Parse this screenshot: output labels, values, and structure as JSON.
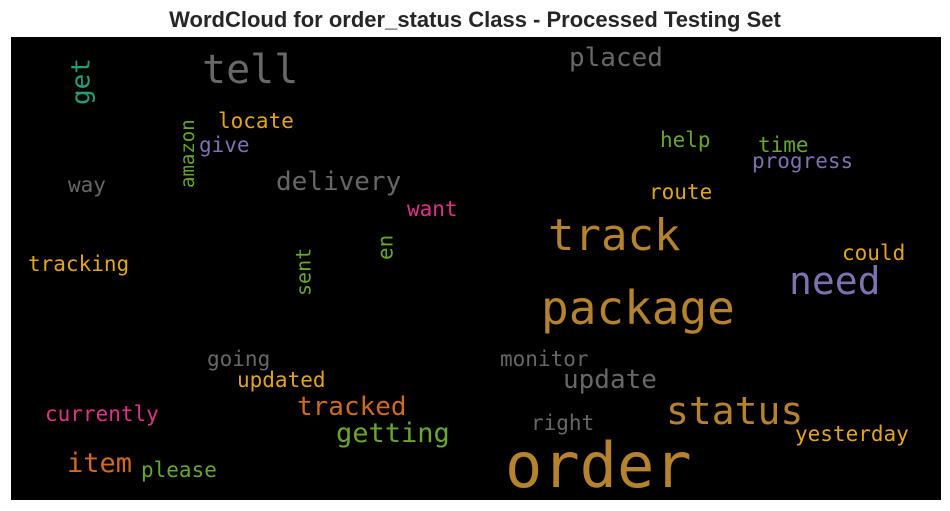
{
  "chart_data": {
    "type": "wordcloud",
    "title": "WordCloud for order_status Class - Processed Testing Set",
    "background": "#000000",
    "words": [
      {
        "text": "order",
        "color": "#b5822d"
      },
      {
        "text": "package",
        "color": "#b5822d"
      },
      {
        "text": "track",
        "color": "#b5822d"
      },
      {
        "text": "status",
        "color": "#b5822d"
      },
      {
        "text": "need",
        "color": "#7b72b0"
      },
      {
        "text": "tell",
        "color": "#676767"
      },
      {
        "text": "delivery",
        "color": "#676767"
      },
      {
        "text": "placed",
        "color": "#676767"
      },
      {
        "text": "update",
        "color": "#676767"
      },
      {
        "text": "getting",
        "color": "#67a72d"
      },
      {
        "text": "tracked",
        "color": "#d06a1f"
      },
      {
        "text": "item",
        "color": "#d06a1f"
      },
      {
        "text": "get",
        "color": "#239e78"
      },
      {
        "text": "locate",
        "color": "#e2a51d"
      },
      {
        "text": "give",
        "color": "#7b72b0"
      },
      {
        "text": "amazon",
        "color": "#67a72d"
      },
      {
        "text": "way",
        "color": "#676767"
      },
      {
        "text": "want",
        "color": "#dd3388"
      },
      {
        "text": "tracking",
        "color": "#e2a51d"
      },
      {
        "text": "sent",
        "color": "#67a72d"
      },
      {
        "text": "en",
        "color": "#67a72d"
      },
      {
        "text": "help",
        "color": "#67a72d"
      },
      {
        "text": "time",
        "color": "#67a72d"
      },
      {
        "text": "progress",
        "color": "#7b72b0"
      },
      {
        "text": "route",
        "color": "#e2a51d"
      },
      {
        "text": "could",
        "color": "#e2a51d"
      },
      {
        "text": "monitor",
        "color": "#676767"
      },
      {
        "text": "going",
        "color": "#676767"
      },
      {
        "text": "updated",
        "color": "#e2a51d"
      },
      {
        "text": "currently",
        "color": "#dd3388"
      },
      {
        "text": "right",
        "color": "#676767"
      },
      {
        "text": "yesterday",
        "color": "#e2a51d"
      },
      {
        "text": "please",
        "color": "#67a72d"
      }
    ]
  }
}
